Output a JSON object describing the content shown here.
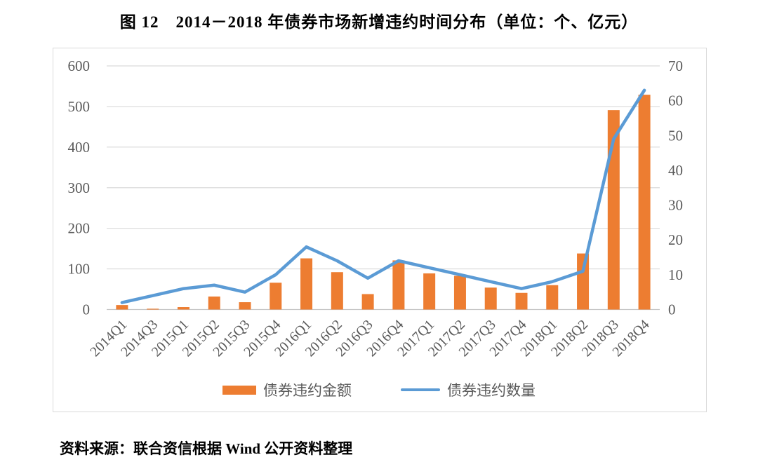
{
  "title": "图 12　2014－2018 年债券市场新增违约时间分布（单位：个、亿元）",
  "source_note": "资料来源：联合资信根据 Wind 公开资料整理",
  "colors": {
    "bar": "#ED7D31",
    "line": "#5B9BD5",
    "grid": "#D9D9D9",
    "axis_line": "#C6C6C6",
    "axis_text": "#595959",
    "border": "#D9D9D9"
  },
  "chart_data": {
    "type": "combo-bar-line",
    "title": "图 12　2014－2018 年债券市场新增违约时间分布（单位：个、亿元）",
    "categories": [
      "2014Q1",
      "2014Q3",
      "2015Q1",
      "2015Q2",
      "2015Q3",
      "2015Q4",
      "2016Q1",
      "2016Q2",
      "2016Q3",
      "2016Q4",
      "2017Q1",
      "2017Q2",
      "2017Q3",
      "2017Q4",
      "2018Q1",
      "2018Q2",
      "2018Q3",
      "2018Q4"
    ],
    "series": [
      {
        "name": "债券违约金额",
        "type": "bar",
        "axis": "left",
        "unit": "亿元",
        "color": "#ED7D31",
        "values": [
          11,
          2,
          6,
          32,
          18,
          66,
          126,
          92,
          38,
          121,
          89,
          83,
          54,
          41,
          60,
          138,
          491,
          529
        ]
      },
      {
        "name": "债券违约数量",
        "type": "line",
        "axis": "right",
        "unit": "个",
        "color": "#5B9BD5",
        "values": [
          2,
          4,
          6,
          7,
          5,
          10,
          18,
          14,
          9,
          14,
          12,
          10,
          8,
          6,
          8,
          11,
          49,
          63
        ]
      }
    ],
    "left_axis": {
      "min": 0,
      "max": 600,
      "ticks": [
        0,
        100,
        200,
        300,
        400,
        500,
        600
      ]
    },
    "right_axis": {
      "min": 0,
      "max": 70,
      "ticks": [
        0,
        10,
        20,
        30,
        40,
        50,
        60,
        70
      ]
    },
    "grid": true,
    "legend_position": "bottom",
    "x_label_rotation": -45
  }
}
